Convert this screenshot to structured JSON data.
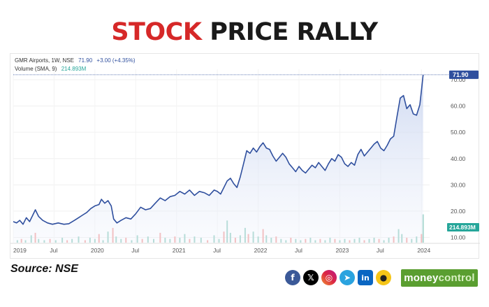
{
  "page": {
    "title_highlight": "STOCK",
    "title_rest": "PRICE RALLY",
    "source": "Source: NSE",
    "brand_a": "money",
    "brand_b": "control",
    "social": [
      {
        "name": "facebook-icon",
        "glyph": "f"
      },
      {
        "name": "x-icon",
        "glyph": "𝕏"
      },
      {
        "name": "instagram-icon",
        "glyph": "◎"
      },
      {
        "name": "telegram-icon",
        "glyph": "➤"
      },
      {
        "name": "linkedin-icon",
        "glyph": "in"
      },
      {
        "name": "kootu-icon",
        "glyph": "●"
      }
    ]
  },
  "chart_data": {
    "type": "line",
    "legend_line1": "GMR Airports, 1W, NSE",
    "legend_price": "71.90",
    "legend_change": "+3.00 (+4.35%)",
    "legend_line2_label": "Volume (SMA, 9)",
    "legend_line2_value": "214.893M",
    "last_price_label": "71.90",
    "volume_label": "214.893M",
    "x_ticks": [
      "2019",
      "Jul",
      "2020",
      "Jul",
      "2021",
      "Jul",
      "2022",
      "Jul",
      "2023",
      "Jul",
      "2024"
    ],
    "y_ticks": [
      "10.00",
      "20.00",
      "30.00",
      "40.00",
      "50.00",
      "60.00",
      "70.00"
    ],
    "ylim": [
      8,
      74
    ],
    "xlim": [
      2019.0,
      2024.1
    ],
    "colors": {
      "line": "#2f4f9e",
      "fill_top": "#c7d3ef",
      "vol_up": "#9dd3c8",
      "vol_down": "#f4a9a8",
      "label_bg": "#2f4f9e",
      "vol_label_bg": "#26a69a"
    },
    "price": [
      [
        2019.0,
        16.0
      ],
      [
        2019.04,
        15.5
      ],
      [
        2019.08,
        16.5
      ],
      [
        2019.12,
        15.0
      ],
      [
        2019.16,
        17.5
      ],
      [
        2019.2,
        16.0
      ],
      [
        2019.24,
        18.5
      ],
      [
        2019.27,
        20.5
      ],
      [
        2019.31,
        18.0
      ],
      [
        2019.36,
        16.5
      ],
      [
        2019.42,
        15.5
      ],
      [
        2019.48,
        15.0
      ],
      [
        2019.55,
        15.5
      ],
      [
        2019.62,
        15.0
      ],
      [
        2019.68,
        15.2
      ],
      [
        2019.75,
        16.5
      ],
      [
        2019.8,
        17.5
      ],
      [
        2019.85,
        18.5
      ],
      [
        2019.9,
        19.5
      ],
      [
        2019.95,
        21.0
      ],
      [
        2020.0,
        22.0
      ],
      [
        2020.05,
        22.5
      ],
      [
        2020.08,
        24.5
      ],
      [
        2020.12,
        23.0
      ],
      [
        2020.16,
        24.0
      ],
      [
        2020.2,
        22.0
      ],
      [
        2020.23,
        17.0
      ],
      [
        2020.27,
        15.5
      ],
      [
        2020.32,
        16.5
      ],
      [
        2020.38,
        17.5
      ],
      [
        2020.44,
        17.0
      ],
      [
        2020.5,
        19.0
      ],
      [
        2020.56,
        21.5
      ],
      [
        2020.62,
        20.5
      ],
      [
        2020.68,
        21.0
      ],
      [
        2020.74,
        23.0
      ],
      [
        2020.8,
        25.0
      ],
      [
        2020.86,
        24.0
      ],
      [
        2020.92,
        25.5
      ],
      [
        2020.98,
        26.0
      ],
      [
        2021.04,
        27.5
      ],
      [
        2021.1,
        26.5
      ],
      [
        2021.16,
        28.0
      ],
      [
        2021.22,
        26.0
      ],
      [
        2021.28,
        27.5
      ],
      [
        2021.34,
        27.0
      ],
      [
        2021.4,
        26.0
      ],
      [
        2021.46,
        28.0
      ],
      [
        2021.5,
        27.5
      ],
      [
        2021.54,
        26.5
      ],
      [
        2021.58,
        29.0
      ],
      [
        2021.62,
        31.5
      ],
      [
        2021.66,
        32.5
      ],
      [
        2021.7,
        30.5
      ],
      [
        2021.74,
        29.0
      ],
      [
        2021.78,
        33.0
      ],
      [
        2021.82,
        38.0
      ],
      [
        2021.86,
        43.0
      ],
      [
        2021.9,
        42.0
      ],
      [
        2021.94,
        44.0
      ],
      [
        2021.98,
        42.5
      ],
      [
        2022.02,
        44.5
      ],
      [
        2022.06,
        46.0
      ],
      [
        2022.1,
        44.0
      ],
      [
        2022.14,
        43.5
      ],
      [
        2022.18,
        41.0
      ],
      [
        2022.22,
        39.0
      ],
      [
        2022.26,
        40.5
      ],
      [
        2022.3,
        42.0
      ],
      [
        2022.34,
        40.5
      ],
      [
        2022.38,
        38.0
      ],
      [
        2022.42,
        36.5
      ],
      [
        2022.46,
        35.0
      ],
      [
        2022.5,
        37.0
      ],
      [
        2022.54,
        35.5
      ],
      [
        2022.58,
        34.5
      ],
      [
        2022.62,
        36.0
      ],
      [
        2022.66,
        37.5
      ],
      [
        2022.7,
        36.5
      ],
      [
        2022.74,
        38.5
      ],
      [
        2022.78,
        37.0
      ],
      [
        2022.82,
        35.5
      ],
      [
        2022.86,
        38.0
      ],
      [
        2022.9,
        40.0
      ],
      [
        2022.94,
        39.0
      ],
      [
        2022.98,
        41.5
      ],
      [
        2023.02,
        40.5
      ],
      [
        2023.06,
        38.0
      ],
      [
        2023.1,
        37.0
      ],
      [
        2023.14,
        38.5
      ],
      [
        2023.18,
        37.5
      ],
      [
        2023.22,
        41.5
      ],
      [
        2023.26,
        43.5
      ],
      [
        2023.3,
        41.0
      ],
      [
        2023.34,
        42.5
      ],
      [
        2023.38,
        44.0
      ],
      [
        2023.42,
        45.5
      ],
      [
        2023.46,
        46.5
      ],
      [
        2023.5,
        44.0
      ],
      [
        2023.54,
        43.0
      ],
      [
        2023.58,
        45.0
      ],
      [
        2023.62,
        47.5
      ],
      [
        2023.66,
        48.5
      ],
      [
        2023.7,
        56.0
      ],
      [
        2023.74,
        63.0
      ],
      [
        2023.78,
        64.0
      ],
      [
        2023.82,
        59.0
      ],
      [
        2023.86,
        60.5
      ],
      [
        2023.9,
        57.0
      ],
      [
        2023.94,
        56.5
      ],
      [
        2023.98,
        60.5
      ],
      [
        2024.0,
        66.0
      ],
      [
        2024.02,
        71.9
      ]
    ],
    "volume": [
      [
        2019.05,
        2
      ],
      [
        2019.1,
        3
      ],
      [
        2019.15,
        2
      ],
      [
        2019.22,
        6
      ],
      [
        2019.27,
        8
      ],
      [
        2019.31,
        3
      ],
      [
        2019.38,
        2
      ],
      [
        2019.45,
        3
      ],
      [
        2019.52,
        2
      ],
      [
        2019.6,
        4
      ],
      [
        2019.66,
        2
      ],
      [
        2019.72,
        3
      ],
      [
        2019.8,
        5
      ],
      [
        2019.88,
        2
      ],
      [
        2019.94,
        4
      ],
      [
        2020.0,
        3
      ],
      [
        2020.05,
        7
      ],
      [
        2020.1,
        2
      ],
      [
        2020.16,
        9
      ],
      [
        2020.22,
        12
      ],
      [
        2020.26,
        5
      ],
      [
        2020.32,
        3
      ],
      [
        2020.38,
        4
      ],
      [
        2020.45,
        2
      ],
      [
        2020.52,
        6
      ],
      [
        2020.58,
        3
      ],
      [
        2020.65,
        5
      ],
      [
        2020.72,
        3
      ],
      [
        2020.8,
        8
      ],
      [
        2020.86,
        4
      ],
      [
        2020.92,
        3
      ],
      [
        2020.98,
        5
      ],
      [
        2021.04,
        4
      ],
      [
        2021.1,
        7
      ],
      [
        2021.16,
        3
      ],
      [
        2021.22,
        5
      ],
      [
        2021.3,
        4
      ],
      [
        2021.38,
        2
      ],
      [
        2021.46,
        6
      ],
      [
        2021.52,
        3
      ],
      [
        2021.58,
        9
      ],
      [
        2021.62,
        18
      ],
      [
        2021.66,
        8
      ],
      [
        2021.72,
        4
      ],
      [
        2021.78,
        6
      ],
      [
        2021.84,
        12
      ],
      [
        2021.88,
        7
      ],
      [
        2021.94,
        9
      ],
      [
        2022.0,
        5
      ],
      [
        2022.06,
        11
      ],
      [
        2022.1,
        6
      ],
      [
        2022.16,
        4
      ],
      [
        2022.22,
        5
      ],
      [
        2022.28,
        3
      ],
      [
        2022.34,
        2
      ],
      [
        2022.4,
        4
      ],
      [
        2022.46,
        3
      ],
      [
        2022.52,
        2
      ],
      [
        2022.58,
        3
      ],
      [
        2022.64,
        4
      ],
      [
        2022.7,
        2
      ],
      [
        2022.76,
        3
      ],
      [
        2022.82,
        2
      ],
      [
        2022.88,
        4
      ],
      [
        2022.94,
        3
      ],
      [
        2023.0,
        2
      ],
      [
        2023.06,
        3
      ],
      [
        2023.12,
        2
      ],
      [
        2023.18,
        3
      ],
      [
        2023.24,
        4
      ],
      [
        2023.3,
        2
      ],
      [
        2023.36,
        3
      ],
      [
        2023.42,
        4
      ],
      [
        2023.48,
        3
      ],
      [
        2023.54,
        2
      ],
      [
        2023.6,
        4
      ],
      [
        2023.66,
        5
      ],
      [
        2023.72,
        11
      ],
      [
        2023.76,
        7
      ],
      [
        2023.82,
        4
      ],
      [
        2023.88,
        3
      ],
      [
        2023.94,
        5
      ],
      [
        2024.0,
        7
      ],
      [
        2024.02,
        23
      ]
    ]
  }
}
